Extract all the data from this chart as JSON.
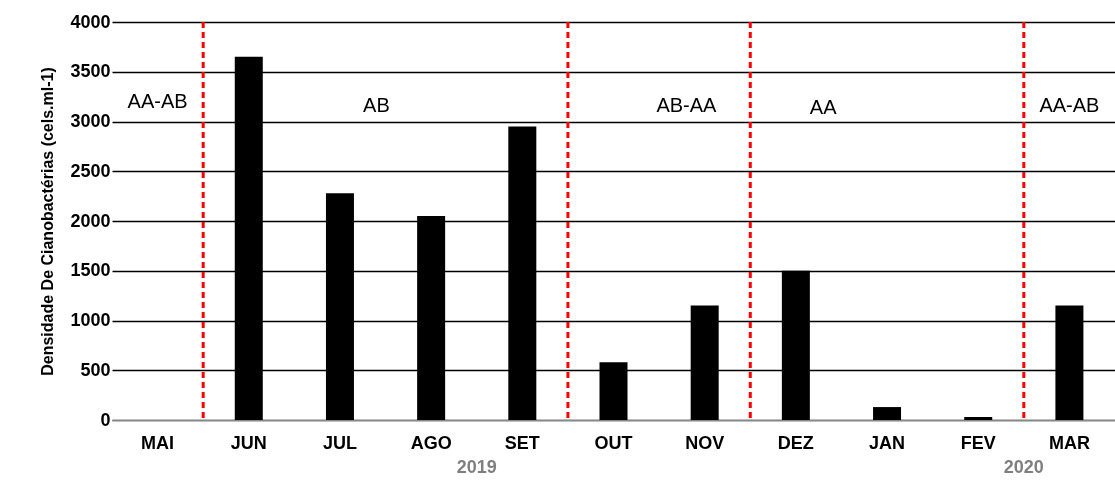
{
  "chart_data": {
    "type": "bar",
    "ylabel": "Densidade De Cianobactérias (cels.ml-1)",
    "categories": [
      "MAI",
      "JUN",
      "JUL",
      "AGO",
      "SET",
      "OUT",
      "NOV",
      "DEZ",
      "JAN",
      "FEV",
      "MAR"
    ],
    "values": [
      0,
      3650,
      2280,
      2050,
      2950,
      580,
      1150,
      1500,
      130,
      30,
      1150
    ],
    "color": "#000000",
    "ylim": [
      0,
      4000
    ],
    "yticks": [
      0,
      500,
      1000,
      1500,
      2000,
      2500,
      3000,
      3500,
      4000
    ],
    "grid": "y",
    "annotations": [
      "AA-AB",
      "AB",
      "AB-AA",
      "AA",
      "AA-AB",
      "2019",
      "2020"
    ]
  }
}
